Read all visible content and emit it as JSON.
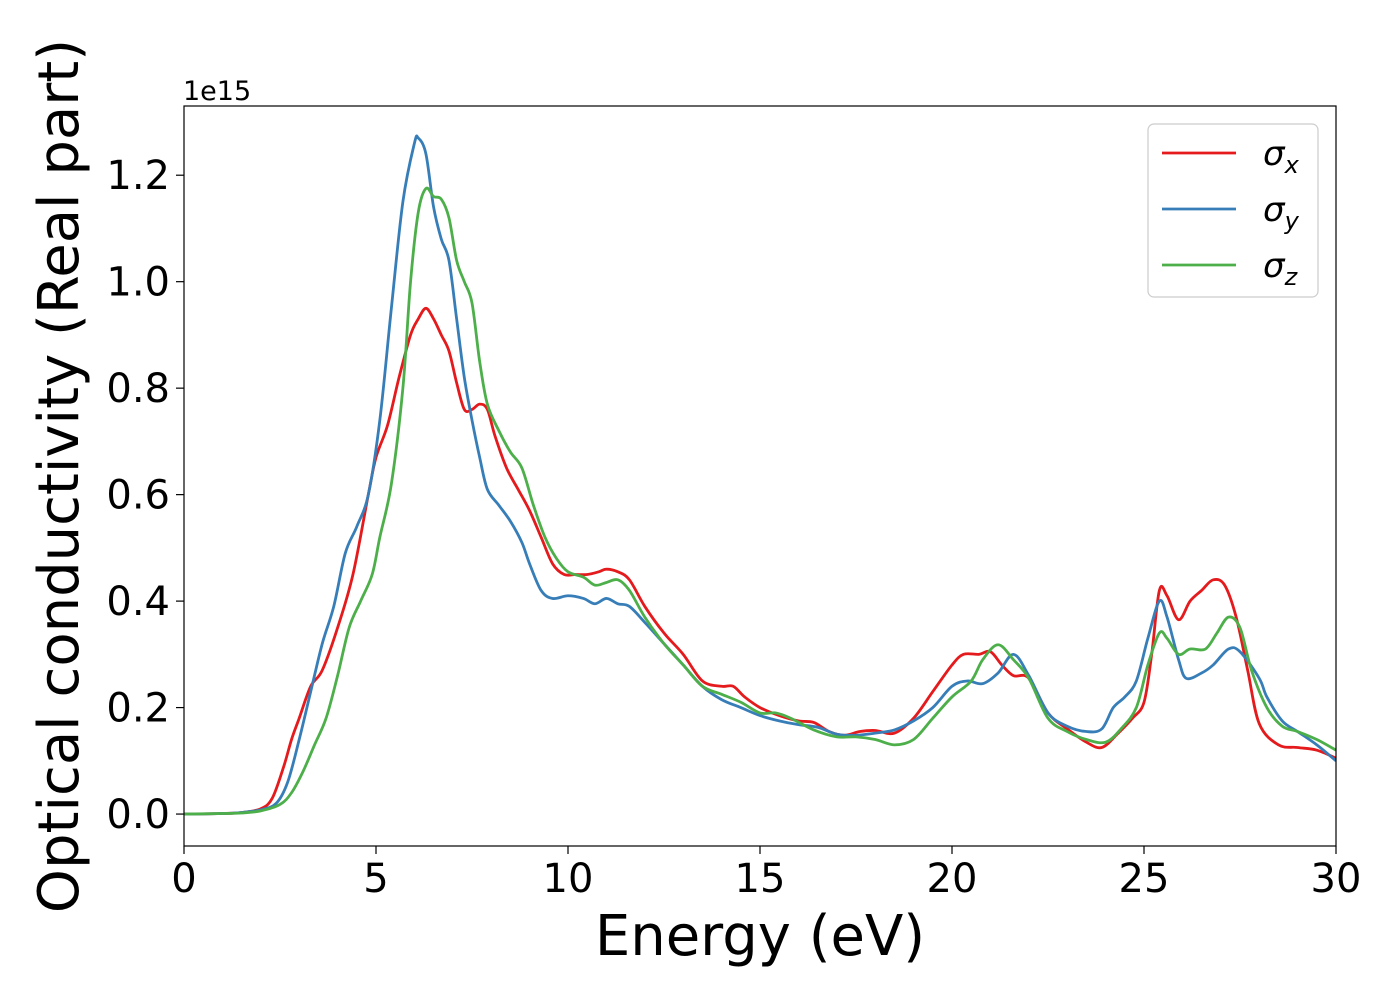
{
  "chart_data": {
    "type": "line",
    "xlabel": "Energy (eV)",
    "ylabel": "Optical conductivity (Real part)",
    "y_offset_text": "1e15",
    "y_scale_multiplier": 1000000000000000.0,
    "xlim": [
      0,
      30
    ],
    "ylim": [
      -0.06,
      1.33
    ],
    "x_ticks": [
      0,
      5,
      10,
      15,
      20,
      25,
      30
    ],
    "x_tick_labels": [
      "0",
      "5",
      "10",
      "15",
      "20",
      "25",
      "30"
    ],
    "y_ticks": [
      0.0,
      0.2,
      0.4,
      0.6,
      0.8,
      1.0,
      1.2
    ],
    "y_tick_labels": [
      "0.0",
      "0.2",
      "0.4",
      "0.6",
      "0.8",
      "1.0",
      "1.2"
    ],
    "grid": false,
    "legend_position": "top-right",
    "series": [
      {
        "name": "σx",
        "symbol": "σ",
        "subscript": "x",
        "color": "#e41a1c",
        "points": [
          [
            0,
            0
          ],
          [
            1,
            0.001
          ],
          [
            1.5,
            0.003
          ],
          [
            2,
            0.01
          ],
          [
            2.3,
            0.03
          ],
          [
            2.6,
            0.09
          ],
          [
            2.8,
            0.14
          ],
          [
            3.0,
            0.18
          ],
          [
            3.3,
            0.24
          ],
          [
            3.6,
            0.27
          ],
          [
            4.0,
            0.35
          ],
          [
            4.4,
            0.45
          ],
          [
            4.8,
            0.6
          ],
          [
            5.0,
            0.67
          ],
          [
            5.3,
            0.73
          ],
          [
            5.6,
            0.82
          ],
          [
            5.9,
            0.9
          ],
          [
            6.1,
            0.93
          ],
          [
            6.3,
            0.95
          ],
          [
            6.5,
            0.93
          ],
          [
            6.7,
            0.9
          ],
          [
            6.9,
            0.87
          ],
          [
            7.1,
            0.81
          ],
          [
            7.3,
            0.76
          ],
          [
            7.5,
            0.76
          ],
          [
            7.7,
            0.77
          ],
          [
            7.9,
            0.76
          ],
          [
            8.1,
            0.71
          ],
          [
            8.4,
            0.65
          ],
          [
            8.7,
            0.61
          ],
          [
            9.0,
            0.57
          ],
          [
            9.3,
            0.52
          ],
          [
            9.6,
            0.47
          ],
          [
            9.9,
            0.45
          ],
          [
            10.2,
            0.45
          ],
          [
            10.5,
            0.45
          ],
          [
            10.8,
            0.455
          ],
          [
            11.0,
            0.46
          ],
          [
            11.3,
            0.455
          ],
          [
            11.6,
            0.44
          ],
          [
            12.0,
            0.39
          ],
          [
            12.5,
            0.34
          ],
          [
            13.0,
            0.3
          ],
          [
            13.5,
            0.25
          ],
          [
            14.0,
            0.24
          ],
          [
            14.3,
            0.24
          ],
          [
            14.6,
            0.22
          ],
          [
            15.0,
            0.2
          ],
          [
            15.5,
            0.185
          ],
          [
            16.0,
            0.175
          ],
          [
            16.4,
            0.172
          ],
          [
            16.8,
            0.155
          ],
          [
            17.2,
            0.148
          ],
          [
            17.6,
            0.155
          ],
          [
            18.0,
            0.157
          ],
          [
            18.5,
            0.152
          ],
          [
            19.0,
            0.18
          ],
          [
            19.5,
            0.23
          ],
          [
            20.0,
            0.28
          ],
          [
            20.3,
            0.3
          ],
          [
            20.7,
            0.3
          ],
          [
            21.0,
            0.305
          ],
          [
            21.3,
            0.28
          ],
          [
            21.6,
            0.26
          ],
          [
            22.0,
            0.255
          ],
          [
            22.5,
            0.19
          ],
          [
            23.0,
            0.16
          ],
          [
            23.5,
            0.135
          ],
          [
            23.9,
            0.125
          ],
          [
            24.3,
            0.15
          ],
          [
            24.7,
            0.18
          ],
          [
            25.0,
            0.21
          ],
          [
            25.2,
            0.3
          ],
          [
            25.4,
            0.42
          ],
          [
            25.6,
            0.41
          ],
          [
            25.9,
            0.365
          ],
          [
            26.2,
            0.4
          ],
          [
            26.5,
            0.42
          ],
          [
            26.8,
            0.44
          ],
          [
            27.1,
            0.43
          ],
          [
            27.4,
            0.37
          ],
          [
            27.7,
            0.27
          ],
          [
            28.0,
            0.17
          ],
          [
            28.5,
            0.13
          ],
          [
            29.0,
            0.125
          ],
          [
            29.5,
            0.12
          ],
          [
            30.0,
            0.105
          ]
        ]
      },
      {
        "name": "σy",
        "symbol": "σ",
        "subscript": "y",
        "color": "#377eb8",
        "points": [
          [
            0,
            0
          ],
          [
            1,
            0.001
          ],
          [
            1.5,
            0.003
          ],
          [
            2,
            0.008
          ],
          [
            2.4,
            0.02
          ],
          [
            2.7,
            0.06
          ],
          [
            3.0,
            0.14
          ],
          [
            3.3,
            0.23
          ],
          [
            3.6,
            0.32
          ],
          [
            3.9,
            0.39
          ],
          [
            4.2,
            0.49
          ],
          [
            4.5,
            0.54
          ],
          [
            4.8,
            0.6
          ],
          [
            5.1,
            0.74
          ],
          [
            5.4,
            0.95
          ],
          [
            5.7,
            1.15
          ],
          [
            6.0,
            1.26
          ],
          [
            6.1,
            1.27
          ],
          [
            6.3,
            1.24
          ],
          [
            6.5,
            1.14
          ],
          [
            6.7,
            1.08
          ],
          [
            6.9,
            1.04
          ],
          [
            7.1,
            0.93
          ],
          [
            7.3,
            0.82
          ],
          [
            7.5,
            0.74
          ],
          [
            7.7,
            0.67
          ],
          [
            7.9,
            0.61
          ],
          [
            8.2,
            0.58
          ],
          [
            8.5,
            0.55
          ],
          [
            8.8,
            0.51
          ],
          [
            9.0,
            0.47
          ],
          [
            9.3,
            0.42
          ],
          [
            9.6,
            0.405
          ],
          [
            10.0,
            0.41
          ],
          [
            10.4,
            0.405
          ],
          [
            10.7,
            0.395
          ],
          [
            11.0,
            0.405
          ],
          [
            11.3,
            0.395
          ],
          [
            11.6,
            0.39
          ],
          [
            12.0,
            0.36
          ],
          [
            12.5,
            0.32
          ],
          [
            13.0,
            0.28
          ],
          [
            13.5,
            0.24
          ],
          [
            14.0,
            0.215
          ],
          [
            14.5,
            0.2
          ],
          [
            15.0,
            0.185
          ],
          [
            15.5,
            0.175
          ],
          [
            16.0,
            0.168
          ],
          [
            16.5,
            0.163
          ],
          [
            17.0,
            0.15
          ],
          [
            17.5,
            0.148
          ],
          [
            18.0,
            0.152
          ],
          [
            18.5,
            0.158
          ],
          [
            19.0,
            0.175
          ],
          [
            19.5,
            0.2
          ],
          [
            20.0,
            0.24
          ],
          [
            20.4,
            0.25
          ],
          [
            20.8,
            0.245
          ],
          [
            21.2,
            0.265
          ],
          [
            21.6,
            0.3
          ],
          [
            22.0,
            0.26
          ],
          [
            22.5,
            0.19
          ],
          [
            23.0,
            0.165
          ],
          [
            23.5,
            0.155
          ],
          [
            23.9,
            0.16
          ],
          [
            24.2,
            0.2
          ],
          [
            24.5,
            0.22
          ],
          [
            24.8,
            0.25
          ],
          [
            25.1,
            0.33
          ],
          [
            25.4,
            0.4
          ],
          [
            25.6,
            0.37
          ],
          [
            25.9,
            0.29
          ],
          [
            26.1,
            0.255
          ],
          [
            26.5,
            0.265
          ],
          [
            26.8,
            0.28
          ],
          [
            27.2,
            0.31
          ],
          [
            27.5,
            0.305
          ],
          [
            28.0,
            0.255
          ],
          [
            28.2,
            0.22
          ],
          [
            28.6,
            0.175
          ],
          [
            29.0,
            0.155
          ],
          [
            29.5,
            0.13
          ],
          [
            30.0,
            0.1
          ]
        ]
      },
      {
        "name": "σz",
        "symbol": "σ",
        "subscript": "z",
        "color": "#4daf4a",
        "points": [
          [
            0,
            0
          ],
          [
            1,
            0.001
          ],
          [
            1.5,
            0.002
          ],
          [
            2,
            0.006
          ],
          [
            2.5,
            0.018
          ],
          [
            2.8,
            0.04
          ],
          [
            3.1,
            0.08
          ],
          [
            3.4,
            0.13
          ],
          [
            3.7,
            0.18
          ],
          [
            4.0,
            0.26
          ],
          [
            4.3,
            0.35
          ],
          [
            4.6,
            0.4
          ],
          [
            4.9,
            0.45
          ],
          [
            5.1,
            0.52
          ],
          [
            5.4,
            0.62
          ],
          [
            5.7,
            0.8
          ],
          [
            5.9,
            1.0
          ],
          [
            6.1,
            1.13
          ],
          [
            6.3,
            1.175
          ],
          [
            6.5,
            1.16
          ],
          [
            6.7,
            1.155
          ],
          [
            6.9,
            1.12
          ],
          [
            7.1,
            1.04
          ],
          [
            7.3,
            1.0
          ],
          [
            7.5,
            0.96
          ],
          [
            7.7,
            0.85
          ],
          [
            7.9,
            0.77
          ],
          [
            8.2,
            0.72
          ],
          [
            8.5,
            0.68
          ],
          [
            8.8,
            0.65
          ],
          [
            9.1,
            0.58
          ],
          [
            9.4,
            0.52
          ],
          [
            9.7,
            0.48
          ],
          [
            10.0,
            0.455
          ],
          [
            10.4,
            0.445
          ],
          [
            10.7,
            0.43
          ],
          [
            11.0,
            0.435
          ],
          [
            11.3,
            0.44
          ],
          [
            11.6,
            0.42
          ],
          [
            12.0,
            0.37
          ],
          [
            12.5,
            0.32
          ],
          [
            13.0,
            0.28
          ],
          [
            13.5,
            0.24
          ],
          [
            14.0,
            0.225
          ],
          [
            14.5,
            0.21
          ],
          [
            15.0,
            0.19
          ],
          [
            15.4,
            0.19
          ],
          [
            15.8,
            0.18
          ],
          [
            16.4,
            0.158
          ],
          [
            17.0,
            0.145
          ],
          [
            17.5,
            0.145
          ],
          [
            18.0,
            0.14
          ],
          [
            18.5,
            0.13
          ],
          [
            19.0,
            0.14
          ],
          [
            19.5,
            0.18
          ],
          [
            20.0,
            0.22
          ],
          [
            20.5,
            0.25
          ],
          [
            20.8,
            0.29
          ],
          [
            21.2,
            0.318
          ],
          [
            21.6,
            0.29
          ],
          [
            22.0,
            0.255
          ],
          [
            22.5,
            0.18
          ],
          [
            23.0,
            0.155
          ],
          [
            23.5,
            0.14
          ],
          [
            24.0,
            0.135
          ],
          [
            24.4,
            0.16
          ],
          [
            24.8,
            0.2
          ],
          [
            25.1,
            0.28
          ],
          [
            25.4,
            0.34
          ],
          [
            25.6,
            0.33
          ],
          [
            25.9,
            0.3
          ],
          [
            26.2,
            0.31
          ],
          [
            26.6,
            0.31
          ],
          [
            26.9,
            0.34
          ],
          [
            27.2,
            0.37
          ],
          [
            27.5,
            0.35
          ],
          [
            27.8,
            0.27
          ],
          [
            28.2,
            0.2
          ],
          [
            28.6,
            0.165
          ],
          [
            29.0,
            0.155
          ],
          [
            29.5,
            0.14
          ],
          [
            30.0,
            0.12
          ]
        ]
      }
    ]
  }
}
